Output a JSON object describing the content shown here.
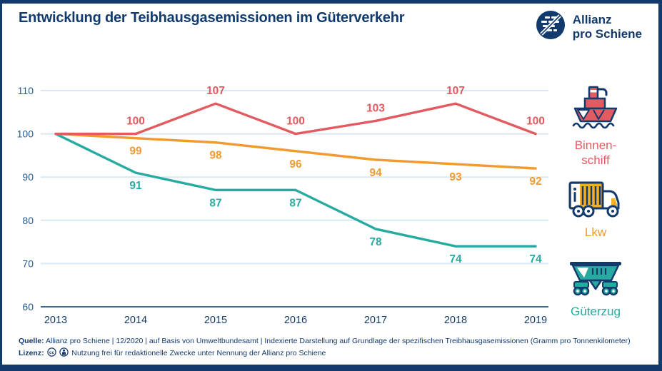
{
  "colors": {
    "navy": "#123a6d",
    "grid": "#d9e8f3",
    "axis_base": "#235383",
    "binnenschiff": "#e25b60",
    "lkw": "#f09a2f",
    "gueterzug": "#27aaa0"
  },
  "header": {
    "title": "Entwicklung der Teibhausgasemissionen im Güterverkehr",
    "logo_line1": "Allianz",
    "logo_line2": "pro Schiene"
  },
  "chart_data": {
    "type": "line",
    "title": "Entwicklung der Teibhausgasemissionen im Güterverkehr",
    "x": [
      2013,
      2014,
      2015,
      2016,
      2017,
      2018,
      2019
    ],
    "series": [
      {
        "name": "Binnenschiff",
        "color": "#e25b60",
        "values": [
          100,
          100,
          107,
          100,
          103,
          107,
          100
        ],
        "label_side": "above"
      },
      {
        "name": "Lkw",
        "color": "#f09a2f",
        "values": [
          100,
          99,
          98,
          96,
          94,
          93,
          92
        ],
        "label_side": "below"
      },
      {
        "name": "Güterzug",
        "color": "#27aaa0",
        "values": [
          100,
          91,
          87,
          87,
          78,
          74,
          74
        ],
        "label_side": "below"
      }
    ],
    "ylim": [
      60,
      110
    ],
    "yticks": [
      60,
      70,
      80,
      90,
      100,
      110
    ],
    "xlabel": "",
    "ylabel": "",
    "grid": true,
    "legend_position": "right",
    "data_labels_shown_from_x": 2014
  },
  "legend": {
    "items": [
      {
        "label": "Binnen-\nschiff",
        "icon": "ship-icon",
        "color": "#e25b60"
      },
      {
        "label": "Lkw",
        "icon": "truck-icon",
        "color": "#f09a2f"
      },
      {
        "label": "Güterzug",
        "icon": "freight-wagon-icon",
        "color": "#27aaa0"
      }
    ]
  },
  "footer": {
    "source_label": "Quelle:",
    "source_text": "Allianz pro Schiene | 12/2020 | auf Basis von Umweltbundesamt | Indexierte Darstellung auf Grundlage der spezifischen Treibhausgasemissionen (Gramm pro Tonnenkilometer)",
    "license_label": "Lizenz:",
    "license_icons": [
      "cc-icon",
      "by-icon"
    ],
    "license_text": "Nutzung frei für redaktionelle Zwecke unter Nennung der Allianz pro Schiene"
  }
}
